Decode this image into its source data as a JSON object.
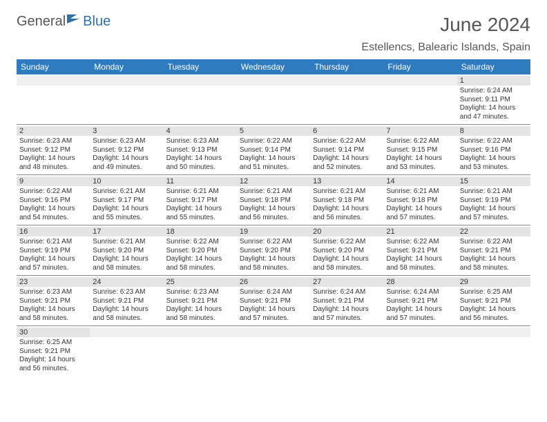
{
  "logo": {
    "part1": "General",
    "part2": "Blue"
  },
  "title": "June 2024",
  "location": "Estellencs, Balearic Islands, Spain",
  "colors": {
    "header_bg": "#2f7bbf",
    "header_text": "#ffffff",
    "daynum_bg": "#e4e4e4",
    "text": "#333333",
    "title_color": "#565656",
    "border": "#888888"
  },
  "dayNames": [
    "Sunday",
    "Monday",
    "Tuesday",
    "Wednesday",
    "Thursday",
    "Friday",
    "Saturday"
  ],
  "weeks": [
    [
      {
        "blank": true
      },
      {
        "blank": true
      },
      {
        "blank": true
      },
      {
        "blank": true
      },
      {
        "blank": true
      },
      {
        "blank": true
      },
      {
        "n": "1",
        "sunrise": "Sunrise: 6:24 AM",
        "sunset": "Sunset: 9:11 PM",
        "day": "Daylight: 14 hours and 47 minutes."
      }
    ],
    [
      {
        "n": "2",
        "sunrise": "Sunrise: 6:23 AM",
        "sunset": "Sunset: 9:12 PM",
        "day": "Daylight: 14 hours and 48 minutes."
      },
      {
        "n": "3",
        "sunrise": "Sunrise: 6:23 AM",
        "sunset": "Sunset: 9:12 PM",
        "day": "Daylight: 14 hours and 49 minutes."
      },
      {
        "n": "4",
        "sunrise": "Sunrise: 6:23 AM",
        "sunset": "Sunset: 9:13 PM",
        "day": "Daylight: 14 hours and 50 minutes."
      },
      {
        "n": "5",
        "sunrise": "Sunrise: 6:22 AM",
        "sunset": "Sunset: 9:14 PM",
        "day": "Daylight: 14 hours and 51 minutes."
      },
      {
        "n": "6",
        "sunrise": "Sunrise: 6:22 AM",
        "sunset": "Sunset: 9:14 PM",
        "day": "Daylight: 14 hours and 52 minutes."
      },
      {
        "n": "7",
        "sunrise": "Sunrise: 6:22 AM",
        "sunset": "Sunset: 9:15 PM",
        "day": "Daylight: 14 hours and 53 minutes."
      },
      {
        "n": "8",
        "sunrise": "Sunrise: 6:22 AM",
        "sunset": "Sunset: 9:16 PM",
        "day": "Daylight: 14 hours and 53 minutes."
      }
    ],
    [
      {
        "n": "9",
        "sunrise": "Sunrise: 6:22 AM",
        "sunset": "Sunset: 9:16 PM",
        "day": "Daylight: 14 hours and 54 minutes."
      },
      {
        "n": "10",
        "sunrise": "Sunrise: 6:21 AM",
        "sunset": "Sunset: 9:17 PM",
        "day": "Daylight: 14 hours and 55 minutes."
      },
      {
        "n": "11",
        "sunrise": "Sunrise: 6:21 AM",
        "sunset": "Sunset: 9:17 PM",
        "day": "Daylight: 14 hours and 55 minutes."
      },
      {
        "n": "12",
        "sunrise": "Sunrise: 6:21 AM",
        "sunset": "Sunset: 9:18 PM",
        "day": "Daylight: 14 hours and 56 minutes."
      },
      {
        "n": "13",
        "sunrise": "Sunrise: 6:21 AM",
        "sunset": "Sunset: 9:18 PM",
        "day": "Daylight: 14 hours and 56 minutes."
      },
      {
        "n": "14",
        "sunrise": "Sunrise: 6:21 AM",
        "sunset": "Sunset: 9:18 PM",
        "day": "Daylight: 14 hours and 57 minutes."
      },
      {
        "n": "15",
        "sunrise": "Sunrise: 6:21 AM",
        "sunset": "Sunset: 9:19 PM",
        "day": "Daylight: 14 hours and 57 minutes."
      }
    ],
    [
      {
        "n": "16",
        "sunrise": "Sunrise: 6:21 AM",
        "sunset": "Sunset: 9:19 PM",
        "day": "Daylight: 14 hours and 57 minutes."
      },
      {
        "n": "17",
        "sunrise": "Sunrise: 6:21 AM",
        "sunset": "Sunset: 9:20 PM",
        "day": "Daylight: 14 hours and 58 minutes."
      },
      {
        "n": "18",
        "sunrise": "Sunrise: 6:22 AM",
        "sunset": "Sunset: 9:20 PM",
        "day": "Daylight: 14 hours and 58 minutes."
      },
      {
        "n": "19",
        "sunrise": "Sunrise: 6:22 AM",
        "sunset": "Sunset: 9:20 PM",
        "day": "Daylight: 14 hours and 58 minutes."
      },
      {
        "n": "20",
        "sunrise": "Sunrise: 6:22 AM",
        "sunset": "Sunset: 9:20 PM",
        "day": "Daylight: 14 hours and 58 minutes."
      },
      {
        "n": "21",
        "sunrise": "Sunrise: 6:22 AM",
        "sunset": "Sunset: 9:21 PM",
        "day": "Daylight: 14 hours and 58 minutes."
      },
      {
        "n": "22",
        "sunrise": "Sunrise: 6:22 AM",
        "sunset": "Sunset: 9:21 PM",
        "day": "Daylight: 14 hours and 58 minutes."
      }
    ],
    [
      {
        "n": "23",
        "sunrise": "Sunrise: 6:23 AM",
        "sunset": "Sunset: 9:21 PM",
        "day": "Daylight: 14 hours and 58 minutes."
      },
      {
        "n": "24",
        "sunrise": "Sunrise: 6:23 AM",
        "sunset": "Sunset: 9:21 PM",
        "day": "Daylight: 14 hours and 58 minutes."
      },
      {
        "n": "25",
        "sunrise": "Sunrise: 6:23 AM",
        "sunset": "Sunset: 9:21 PM",
        "day": "Daylight: 14 hours and 58 minutes."
      },
      {
        "n": "26",
        "sunrise": "Sunrise: 6:24 AM",
        "sunset": "Sunset: 9:21 PM",
        "day": "Daylight: 14 hours and 57 minutes."
      },
      {
        "n": "27",
        "sunrise": "Sunrise: 6:24 AM",
        "sunset": "Sunset: 9:21 PM",
        "day": "Daylight: 14 hours and 57 minutes."
      },
      {
        "n": "28",
        "sunrise": "Sunrise: 6:24 AM",
        "sunset": "Sunset: 9:21 PM",
        "day": "Daylight: 14 hours and 57 minutes."
      },
      {
        "n": "29",
        "sunrise": "Sunrise: 6:25 AM",
        "sunset": "Sunset: 9:21 PM",
        "day": "Daylight: 14 hours and 56 minutes."
      }
    ],
    [
      {
        "n": "30",
        "sunrise": "Sunrise: 6:25 AM",
        "sunset": "Sunset: 9:21 PM",
        "day": "Daylight: 14 hours and 56 minutes."
      },
      {
        "blank": true
      },
      {
        "blank": true
      },
      {
        "blank": true
      },
      {
        "blank": true
      },
      {
        "blank": true
      },
      {
        "blank": true
      }
    ]
  ]
}
